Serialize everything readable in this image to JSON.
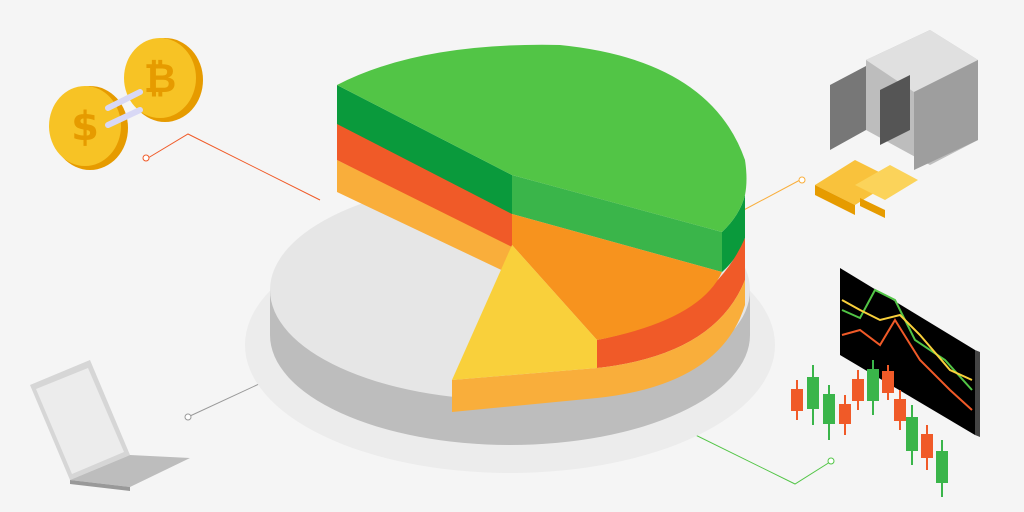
{
  "illustration": {
    "subject": "isometric-pie-chart-with-investment-assets",
    "icons": [
      "crypto-exchange-coins-icon",
      "gold-vault-icon",
      "trading-monitor-icon",
      "candlestick-chart-icon",
      "laptop-icon"
    ],
    "colors": {
      "background": "#f5f5f5",
      "green": "#52c546",
      "dark_green": "#0a9a3c",
      "mid_green": "#3ab54a",
      "red_orange": "#f05a28",
      "orange": "#f7931e",
      "light_orange": "#f9ae3b",
      "yellow": "#f9d03b",
      "grey_top": "#e6e6e6",
      "grey_side": "#bdbdbd",
      "gold": "#f7b500"
    }
  }
}
